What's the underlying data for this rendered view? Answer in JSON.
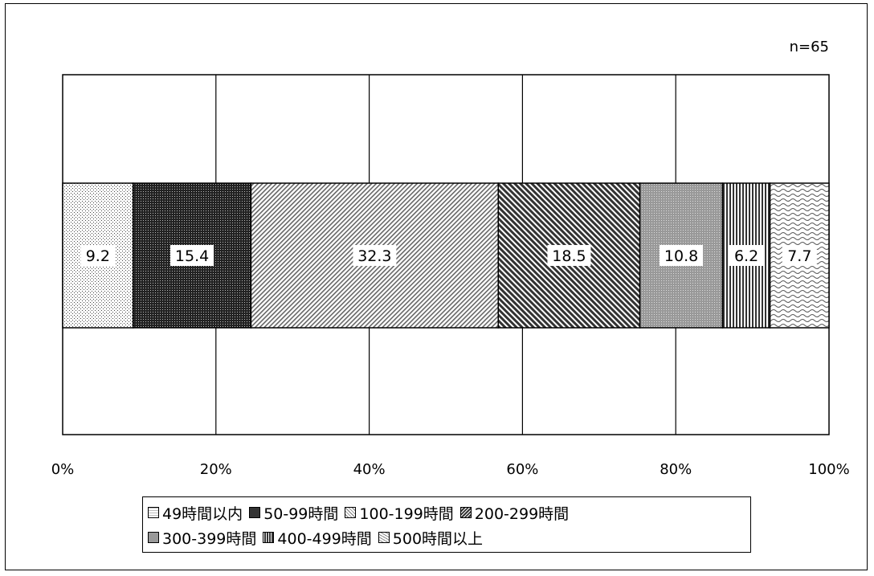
{
  "chart_data": {
    "type": "bar",
    "orientation": "horizontal-stacked-100",
    "n_label": "n=65",
    "x_ticks": [
      "0%",
      "20%",
      "40%",
      "60%",
      "80%",
      "100%"
    ],
    "xlim": [
      0,
      100
    ],
    "grid": true,
    "legend_position": "bottom",
    "series": [
      {
        "name": "49時間以内",
        "value": 9.2,
        "label": "9.2",
        "pattern": "dots"
      },
      {
        "name": "50-99時間",
        "value": 15.4,
        "label": "15.4",
        "pattern": "dense-dark"
      },
      {
        "name": "100-199時間",
        "value": 32.3,
        "label": "32.3",
        "pattern": "diag-light"
      },
      {
        "name": "200-299時間",
        "value": 18.5,
        "label": "18.5",
        "pattern": "diag-dark"
      },
      {
        "name": "300-399時間",
        "value": 10.8,
        "label": "10.8",
        "pattern": "grid-gray"
      },
      {
        "name": "400-499時間",
        "value": 6.2,
        "label": "6.2",
        "pattern": "vertical"
      },
      {
        "name": "500時間以上",
        "value": 7.7,
        "label": "7.7",
        "pattern": "wave"
      }
    ]
  },
  "legend": {
    "row1": [
      "□ 49時間以内",
      "■ 50-99時間",
      "▧ 100-199時間",
      "▨ 200-299時間"
    ],
    "row2": [
      "▦ 300-399時間",
      "▥ 400-499時間",
      "▨ 500時間以上"
    ]
  }
}
